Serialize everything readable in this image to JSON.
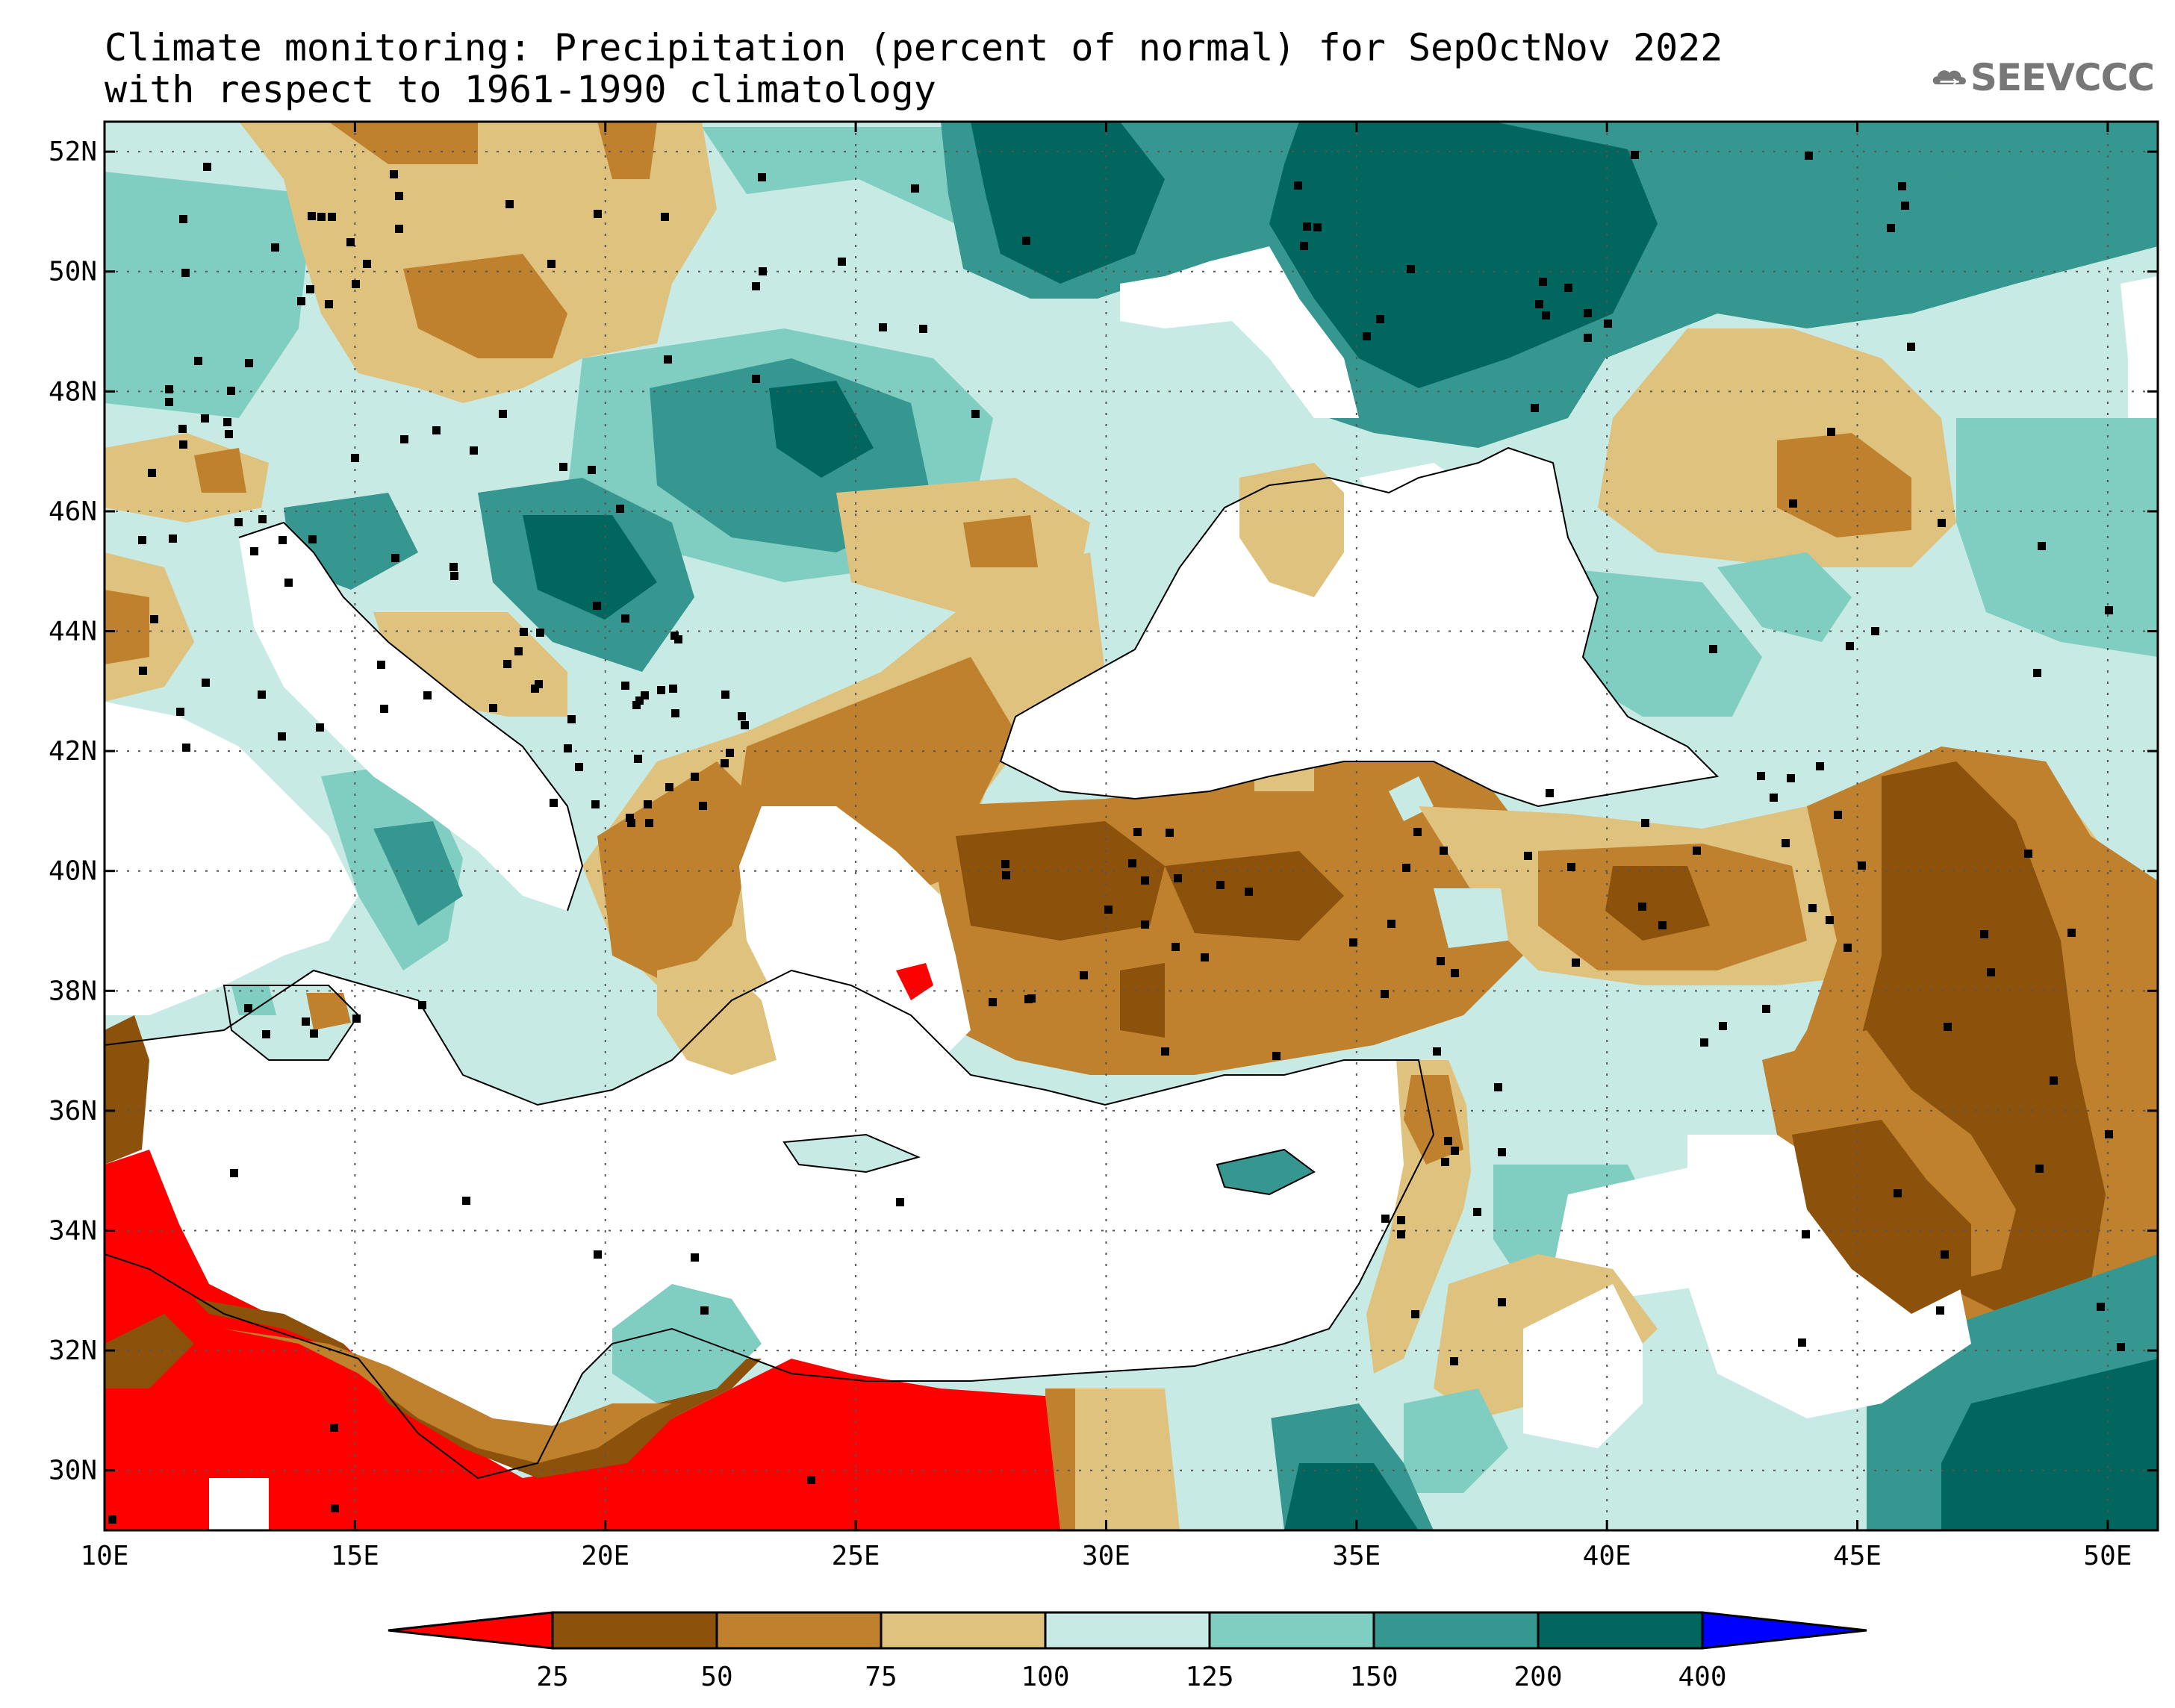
{
  "title": {
    "line1": "Climate monitoring: Precipitation (percent of normal) for SepOctNov 2022",
    "line2": "with respect to 1961-1990 climatology"
  },
  "logo": {
    "text": "SEEVCCC",
    "icon": "cloud-icon"
  },
  "map": {
    "x_ticks": [
      "10E",
      "15E",
      "20E",
      "25E",
      "30E",
      "35E",
      "40E",
      "45E",
      "50E"
    ],
    "y_ticks": [
      "52N",
      "50N",
      "48N",
      "46N",
      "44N",
      "42N",
      "40N",
      "38N",
      "36N",
      "34N",
      "32N",
      "30N"
    ],
    "lon_range": [
      10,
      51
    ],
    "lat_range": [
      29,
      52.5
    ],
    "grid": "dotted"
  },
  "colorbar": {
    "labels": [
      "25",
      "50",
      "75",
      "100",
      "125",
      "150",
      "200",
      "400"
    ],
    "colors": [
      "#ff0000",
      "#8c510a",
      "#bf812d",
      "#dfc27d",
      "#c7eae5",
      "#80cdc1",
      "#35978f",
      "#01665e",
      "#0000ff"
    ]
  }
}
